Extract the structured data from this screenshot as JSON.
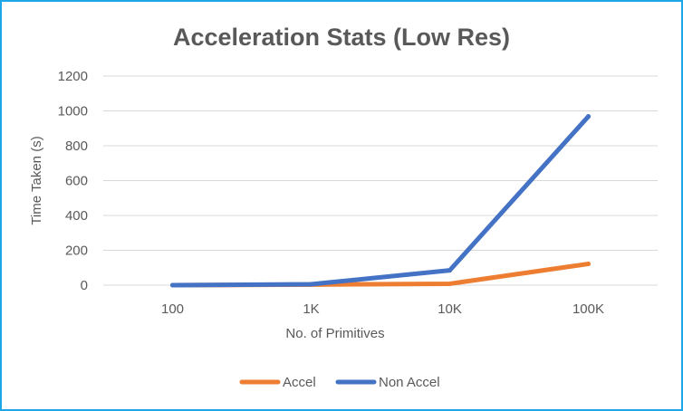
{
  "chart_data": {
    "type": "line",
    "title": "Acceleration Stats (Low Res)",
    "xlabel": "No. of Primitives",
    "ylabel": "Time Taken (s)",
    "categories": [
      "100",
      "1K",
      "10K",
      "100K"
    ],
    "ylim": [
      0,
      1200
    ],
    "yticks": [
      0,
      200,
      400,
      600,
      800,
      1000,
      1200
    ],
    "grid": true,
    "legend_position": "bottom",
    "series": [
      {
        "name": "Accel",
        "color": "#ed7d31",
        "values": [
          0,
          3,
          8,
          122
        ]
      },
      {
        "name": "Non Accel",
        "color": "#4472c4",
        "values": [
          0,
          5,
          85,
          968
        ]
      }
    ]
  }
}
